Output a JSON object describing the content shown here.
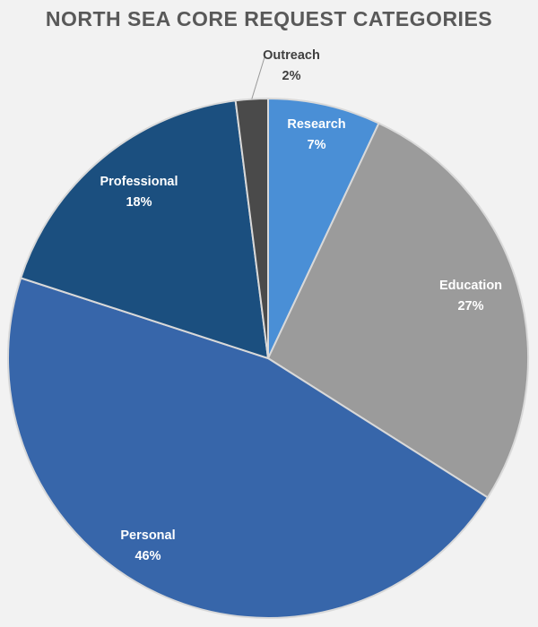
{
  "chart_data": {
    "type": "pie",
    "title": "NORTH SEA CORE REQUEST CATEGORIES",
    "slices": [
      {
        "label": "Research",
        "value": 7,
        "value_label": "7%",
        "color": "#4a8fd6",
        "text_color": "#ffffff"
      },
      {
        "label": "Education",
        "value": 27,
        "value_label": "27%",
        "color": "#9b9b9b",
        "text_color": "#ffffff"
      },
      {
        "label": "Personal",
        "value": 46,
        "value_label": "46%",
        "color": "#3766aa",
        "text_color": "#ffffff"
      },
      {
        "label": "Professional",
        "value": 18,
        "value_label": "18%",
        "color": "#1b4f7f",
        "text_color": "#ffffff"
      },
      {
        "label": "Outreach",
        "value": 2,
        "value_label": "2%",
        "color": "#4a4a4a",
        "text_color": "#404040"
      }
    ],
    "start": "12 o'clock",
    "direction": "clockwise",
    "legend": "none",
    "data_labels": "category and percent"
  }
}
